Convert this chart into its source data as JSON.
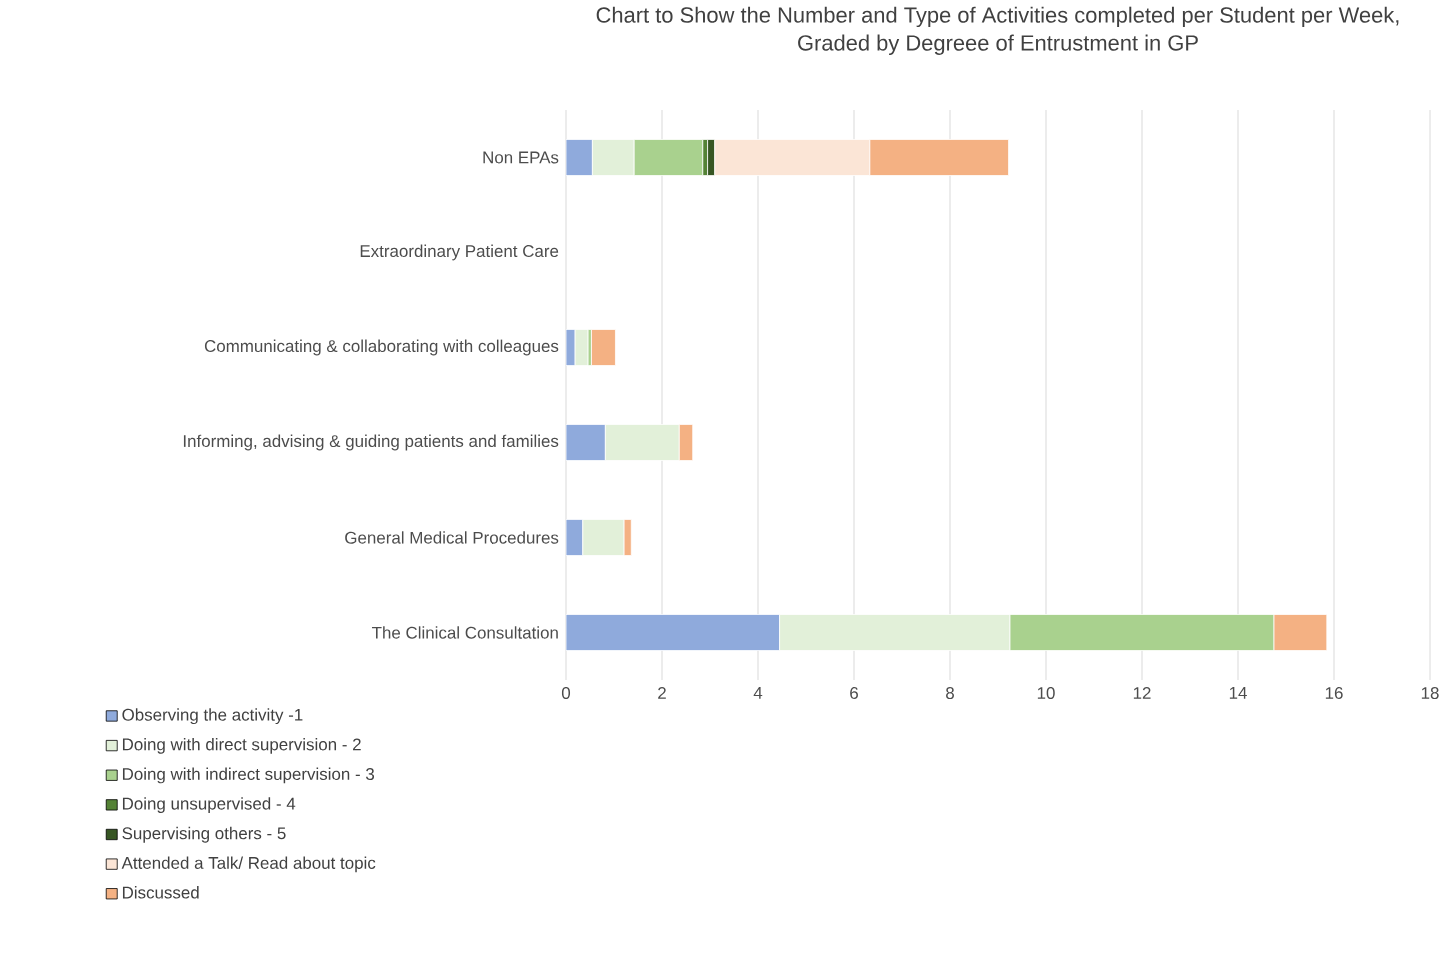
{
  "chart_data": {
    "type": "bar",
    "orientation": "horizontal",
    "stacked": true,
    "title": "Chart to Show the Number and Type of Activities completed per Student per Week,\nGraded by Degreee of Entrustment in GP",
    "categories": [
      "Non EPAs",
      "Extraordinary Patient Care",
      "Communicating & collaborating with colleagues",
      "Informing, advising & guiding patients and families",
      "General Medical Procedures",
      "The Clinical Consultation"
    ],
    "series": [
      {
        "name": "Observing the activity -1",
        "color": "#8faadc",
        "values": [
          0.55,
          null,
          0.19,
          0.82,
          0.35,
          4.45
        ]
      },
      {
        "name": "Doing with direct supervision - 2",
        "color": "#e2f0d9",
        "values": [
          0.87,
          null,
          0.27,
          1.54,
          0.86,
          4.8
        ]
      },
      {
        "name": "Doing with indirect supervision - 3",
        "color": "#a9d18e",
        "values": [
          1.43,
          null,
          0.07,
          null,
          null,
          5.5
        ]
      },
      {
        "name": "Doing unsupervised - 4",
        "color": "#548235",
        "values": [
          0.1,
          null,
          null,
          null,
          null,
          null
        ]
      },
      {
        "name": "Supervising others - 5",
        "color": "#375623",
        "values": [
          0.15,
          null,
          null,
          null,
          null,
          null
        ]
      },
      {
        "name": "Attended a Talk/ Read about topic",
        "color": "#fbe5d6",
        "values": [
          3.23,
          null,
          null,
          null,
          null,
          null
        ]
      },
      {
        "name": "Discussed",
        "color": "#f4b183",
        "values": [
          2.89,
          null,
          0.5,
          0.28,
          0.15,
          1.1
        ]
      }
    ],
    "xlim": [
      0,
      18
    ],
    "xticks": [
      0,
      2,
      4,
      6,
      8,
      10,
      12,
      14,
      16,
      18
    ],
    "grid": "x",
    "legend": "bottom left"
  }
}
